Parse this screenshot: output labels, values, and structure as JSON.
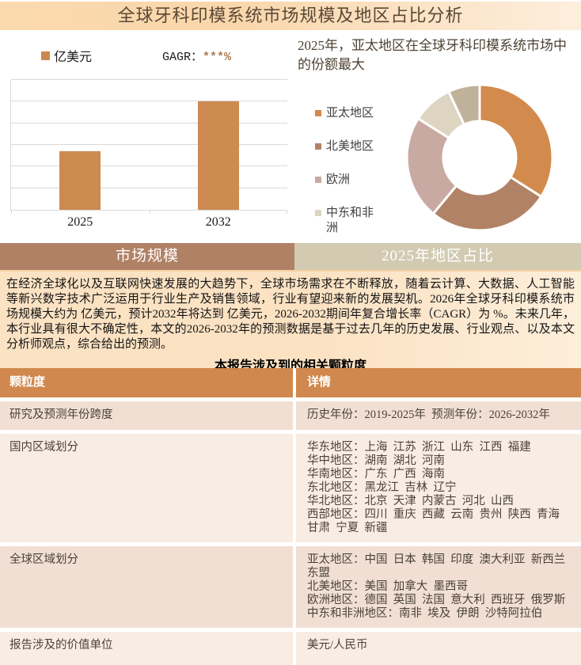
{
  "page_title": "全球牙科印模系统市场规模及地区占比分析",
  "tabs": [
    {
      "label": "市场规模"
    },
    {
      "label": "2025年地区占比"
    }
  ],
  "bar_panel": {
    "legend_label": "亿美元",
    "cagr_label": "GAGR：",
    "cagr_value": "***%"
  },
  "pie_panel": {
    "title": "2025年，亚太地区在全球牙科印模系统市场中的份额最大"
  },
  "chart_data": [
    {
      "type": "bar",
      "title": "",
      "categories": [
        "2025",
        "2032"
      ],
      "series": [
        {
          "name": "亿美元",
          "values": [
            2.7,
            5.0
          ]
        }
      ],
      "ylabel": "亿美元",
      "ylim": [
        0,
        6
      ],
      "grid": true,
      "annotation": "GAGR：***%",
      "bar_color": "#cd8a51",
      "value_labels_shown": false
    },
    {
      "type": "pie",
      "donut": true,
      "title": "2025年，亚太地区在全球牙科印模系统市场中的份额最大",
      "labels": [
        "亚太地区",
        "北美地区",
        "欧洲",
        "中东和非洲",
        ""
      ],
      "values": [
        34,
        27,
        23,
        9,
        7
      ],
      "unit": "% (estimated from arc angles, no data labels shown)",
      "colors": [
        "#d38a4d",
        "#b28266",
        "#c9aaa2",
        "#ddd5c1",
        "#c0b29a"
      ],
      "legend_position": "left",
      "legend_entries": [
        "亚太地区",
        "北美地区",
        "欧洲",
        "中东和非洲"
      ]
    }
  ],
  "description": "在经济全球化以及互联网快速发展的大趋势下，全球市场需求在不断释放，随着云计算、大数据、人工智能等新兴数字技术广泛运用于行业生产及销售领域，行业有望迎来新的发展契机。2026年全球牙科印模系统市场规模大约为 亿美元，预计2032年将达到 亿美元，2026-2032期间年复合增长率（CAGR）为 %。未来几年，本行业具有很大不确定性，本文的2026-2032年的预测数据是基于过去几年的历史发展、行业观点、以及本文分析师观点，综合给出的预测。",
  "table_title": "本报告涉及到的相关颗粒度",
  "table": {
    "headers": [
      "颗粒度",
      "详情"
    ],
    "rows": [
      {
        "label": "研究及预测年份跨度",
        "details": [
          "历史年份：2019-2025年  预测年份：2026-2032年"
        ],
        "min_height": 36
      },
      {
        "label": "国内区域划分",
        "details": [
          "华东地区：上海  江苏  浙江  山东  江西  福建",
          "华中地区：湖南  湖北  河南",
          "华南地区：广东  广西  海南",
          "东北地区：黑龙江  吉林  辽宁",
          "华北地区：北京  天津  内蒙古  河北  山西",
          "西部地区：四川  重庆  西藏  云南  贵州  陕西  青海  甘肃  宁夏  新疆"
        ],
        "min_height": 131
      },
      {
        "label": "全球区域划分",
        "details": [
          "亚太地区：中国  日本  韩国  印度  澳大利亚  新西兰  东盟",
          "北美地区：美国  加拿大  墨西哥",
          "欧洲地区：德国  英国  法国  意大利  西班牙  俄罗斯",
          "中东和非洲地区：南非  埃及  伊朗  沙特阿拉伯"
        ],
        "min_height": 83
      },
      {
        "label": "报告涉及的价值单位",
        "details": [
          "美元/人民币"
        ],
        "min_height": 42
      }
    ]
  },
  "colors": {
    "title_bar_bg": "#fbd9af",
    "tab_left_bg": "#b08165",
    "tab_right_bg": "#d2cbb2",
    "table_header_bg": "#d0884e",
    "row_odd_bg": "#f2dfd4",
    "row_even_bg": "#f9ede3",
    "bar_color": "#cd8a51",
    "gridline": "#d9d9d9"
  }
}
